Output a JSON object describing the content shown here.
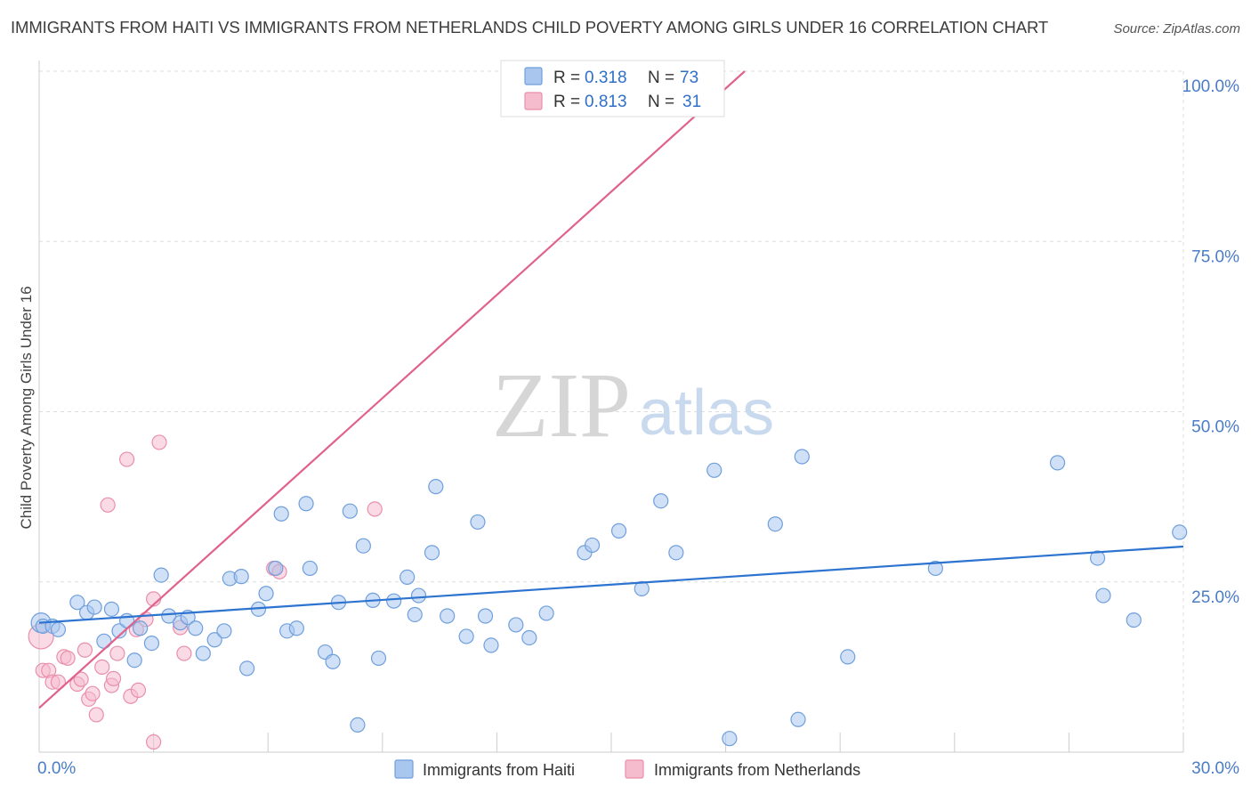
{
  "title": "IMMIGRANTS FROM HAITI VS IMMIGRANTS FROM NETHERLANDS CHILD POVERTY AMONG GIRLS UNDER 16 CORRELATION CHART",
  "source": "Source: ZipAtlas.com",
  "watermark": {
    "zip": "ZIP",
    "atlas": "atlas"
  },
  "colors": {
    "haiti_fill": "#a9c7ee",
    "haiti_stroke": "#6f9fdc",
    "haiti_line": "#2d74d0",
    "neth_fill": "#f5bccd",
    "neth_stroke": "#e98fab",
    "neth_line": "#e0628c",
    "grid": "#dddddd",
    "tick_label": "#4a7cc7"
  },
  "legend": {
    "haiti": {
      "r_label": "R =",
      "r_value": "0.318",
      "n_label": "N =",
      "n_value": "73"
    },
    "netherlands": {
      "r_label": "R =",
      "r_value": "0.813",
      "n_label": "N =",
      "n_value": "31"
    }
  },
  "chart_data": {
    "type": "scatter",
    "title": "IMMIGRANTS FROM HAITI VS IMMIGRANTS FROM NETHERLANDS CHILD POVERTY AMONG GIRLS UNDER 16 CORRELATION CHART",
    "xlabel": "",
    "ylabel": "Child Poverty Among Girls Under 16",
    "xlim": [
      0,
      30
    ],
    "ylim": [
      0,
      100
    ],
    "x_tick_labels": [
      "0.0%",
      "30.0%"
    ],
    "y_ticks": [
      25,
      50,
      75,
      100
    ],
    "y_tick_labels": [
      "25.0%",
      "50.0%",
      "75.0%",
      "100.0%"
    ],
    "legend_position": "top-center",
    "grid": true,
    "series": [
      {
        "name": "Immigrants from Haiti",
        "R": 0.318,
        "N": 73,
        "trend": {
          "x": [
            0,
            30
          ],
          "y": [
            19.0,
            30.2
          ]
        },
        "points": [
          [
            0.05,
            19.0
          ],
          [
            0.1,
            18.5
          ],
          [
            0.35,
            18.5
          ],
          [
            0.5,
            18.0
          ],
          [
            1.0,
            22.0
          ],
          [
            1.25,
            20.5
          ],
          [
            1.45,
            21.3
          ],
          [
            1.7,
            16.3
          ],
          [
            1.9,
            21.0
          ],
          [
            2.1,
            17.8
          ],
          [
            2.3,
            19.3
          ],
          [
            2.5,
            13.5
          ],
          [
            2.65,
            18.2
          ],
          [
            2.95,
            16.0
          ],
          [
            3.2,
            26.0
          ],
          [
            3.4,
            20.0
          ],
          [
            3.7,
            19.0
          ],
          [
            3.9,
            19.8
          ],
          [
            4.1,
            18.2
          ],
          [
            4.3,
            14.5
          ],
          [
            4.6,
            16.5
          ],
          [
            4.85,
            17.8
          ],
          [
            5.0,
            25.5
          ],
          [
            5.3,
            25.8
          ],
          [
            5.45,
            12.3
          ],
          [
            5.75,
            21.0
          ],
          [
            5.95,
            23.3
          ],
          [
            6.2,
            27.0
          ],
          [
            6.35,
            35.0
          ],
          [
            6.5,
            17.8
          ],
          [
            6.75,
            18.2
          ],
          [
            7.0,
            36.5
          ],
          [
            7.1,
            27.0
          ],
          [
            7.5,
            14.7
          ],
          [
            7.7,
            13.3
          ],
          [
            7.85,
            22.0
          ],
          [
            8.15,
            35.4
          ],
          [
            8.35,
            4.0
          ],
          [
            8.5,
            30.3
          ],
          [
            8.75,
            22.3
          ],
          [
            8.9,
            13.8
          ],
          [
            9.3,
            22.2
          ],
          [
            9.65,
            25.7
          ],
          [
            9.85,
            20.2
          ],
          [
            9.95,
            23.0
          ],
          [
            10.3,
            29.3
          ],
          [
            10.4,
            39.0
          ],
          [
            10.7,
            20.0
          ],
          [
            11.2,
            17.0
          ],
          [
            11.5,
            33.8
          ],
          [
            11.7,
            20.0
          ],
          [
            11.85,
            15.7
          ],
          [
            12.5,
            18.7
          ],
          [
            12.85,
            16.8
          ],
          [
            13.3,
            20.4
          ],
          [
            14.3,
            29.3
          ],
          [
            14.5,
            30.4
          ],
          [
            15.2,
            32.5
          ],
          [
            15.8,
            24.0
          ],
          [
            16.3,
            36.9
          ],
          [
            16.7,
            29.3
          ],
          [
            17.7,
            41.4
          ],
          [
            18.1,
            2.0
          ],
          [
            19.3,
            33.5
          ],
          [
            19.9,
            4.8
          ],
          [
            20.0,
            43.4
          ],
          [
            21.2,
            14.0
          ],
          [
            23.5,
            27.0
          ],
          [
            26.7,
            42.5
          ],
          [
            27.75,
            28.5
          ],
          [
            27.9,
            23.0
          ],
          [
            28.7,
            19.4
          ],
          [
            29.9,
            32.3
          ]
        ]
      },
      {
        "name": "Immigrants from Netherlands",
        "R": 0.813,
        "N": 31,
        "trend": {
          "x": [
            0,
            18.5
          ],
          "y": [
            6.5,
            100.0
          ]
        },
        "points": [
          [
            0.05,
            17.0
          ],
          [
            0.1,
            12.0
          ],
          [
            0.25,
            12.0
          ],
          [
            0.35,
            10.3
          ],
          [
            0.5,
            10.3
          ],
          [
            0.65,
            14.0
          ],
          [
            0.75,
            13.8
          ],
          [
            1.0,
            10.0
          ],
          [
            1.1,
            10.7
          ],
          [
            1.2,
            15.0
          ],
          [
            1.3,
            7.8
          ],
          [
            1.4,
            8.6
          ],
          [
            1.5,
            5.5
          ],
          [
            1.65,
            12.5
          ],
          [
            1.8,
            36.3
          ],
          [
            1.9,
            9.8
          ],
          [
            1.95,
            10.8
          ],
          [
            2.05,
            14.5
          ],
          [
            2.3,
            43.0
          ],
          [
            2.4,
            8.2
          ],
          [
            2.55,
            18.0
          ],
          [
            2.6,
            9.1
          ],
          [
            2.8,
            19.5
          ],
          [
            3.0,
            1.5
          ],
          [
            3.0,
            22.5
          ],
          [
            3.15,
            45.5
          ],
          [
            3.7,
            18.3
          ],
          [
            3.8,
            14.5
          ],
          [
            6.15,
            27.0
          ],
          [
            6.3,
            26.5
          ],
          [
            8.8,
            35.7
          ]
        ]
      }
    ]
  },
  "bottom_legend": {
    "haiti_label": "Immigrants from Haiti",
    "netherlands_label": "Immigrants from Netherlands"
  }
}
